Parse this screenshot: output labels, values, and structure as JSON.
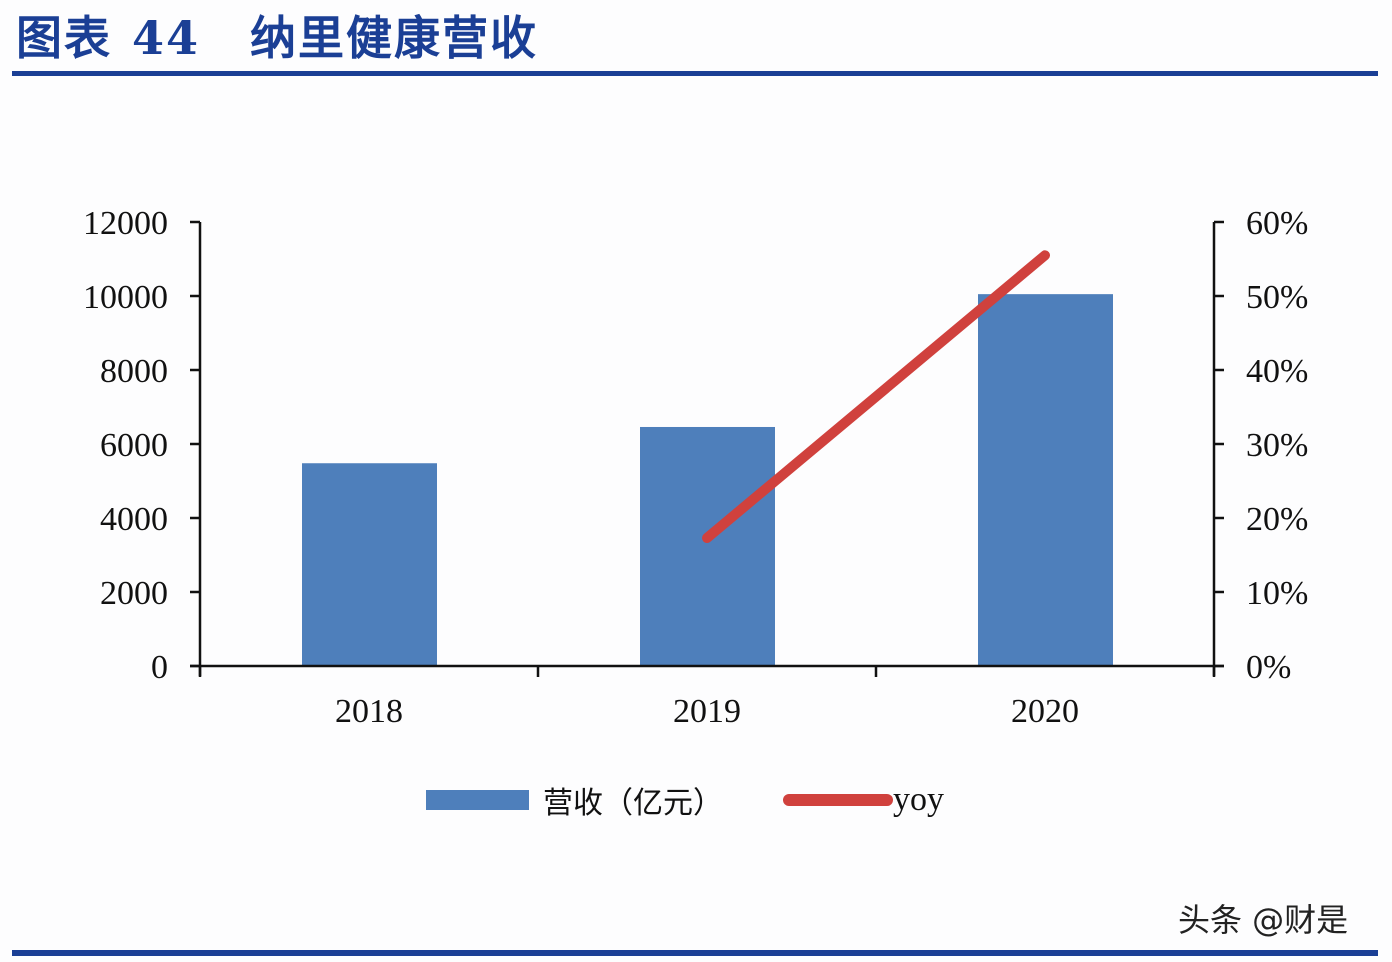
{
  "header": {
    "figure_label": "图表",
    "figure_number": "44",
    "title": "纳里健康营收"
  },
  "legend": {
    "bar_label": "营收（亿元）",
    "line_label": "yoy"
  },
  "watermark": "头条 @财是",
  "colors": {
    "brand": "#1b3f95",
    "bar": "#4e7fbb",
    "line": "#d0413d"
  },
  "chart_data": {
    "type": "bar+line",
    "title": "纳里健康营收",
    "categories": [
      "2018",
      "2019",
      "2020"
    ],
    "series": [
      {
        "name": "营收（亿元）",
        "type": "bar",
        "axis": "left",
        "values": [
          5480,
          6460,
          10050
        ]
      },
      {
        "name": "yoy",
        "type": "line",
        "axis": "right",
        "values": [
          null,
          0.173,
          0.555
        ]
      }
    ],
    "left_axis": {
      "ylim": [
        0,
        12000
      ],
      "ticks": [
        "0",
        "2000",
        "4000",
        "6000",
        "8000",
        "10000",
        "12000"
      ]
    },
    "right_axis": {
      "ylim": [
        0,
        0.6
      ],
      "ticks": [
        "0%",
        "10%",
        "20%",
        "30%",
        "40%",
        "50%",
        "60%"
      ]
    },
    "grid": false,
    "legend_position": "bottom"
  }
}
